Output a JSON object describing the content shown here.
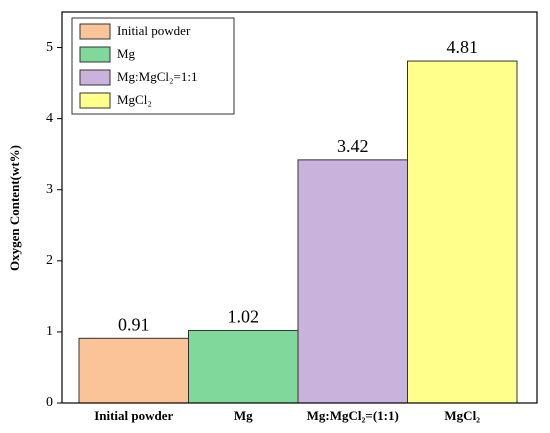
{
  "chart_data": {
    "type": "bar",
    "y_label": "Oxygen Content(wt%)",
    "categories": [
      "Initial powder",
      "Mg",
      "Mg:MgCl₂=(1:1)",
      "MgCl₂"
    ],
    "values": [
      0.91,
      1.02,
      3.42,
      4.81
    ],
    "value_labels": [
      "0.91",
      "1.02",
      "3.42",
      "4.81"
    ],
    "colors": [
      "#fbc498",
      "#80d99a",
      "#c9b3dc",
      "#ffff8c"
    ],
    "legend": [
      "Initial powder",
      "Mg",
      "Mg:MgCl₂=1:1",
      "MgCl₂"
    ],
    "ylim": [
      0,
      5.5
    ],
    "yticks": [
      0,
      1,
      2,
      3,
      4,
      5
    ]
  }
}
